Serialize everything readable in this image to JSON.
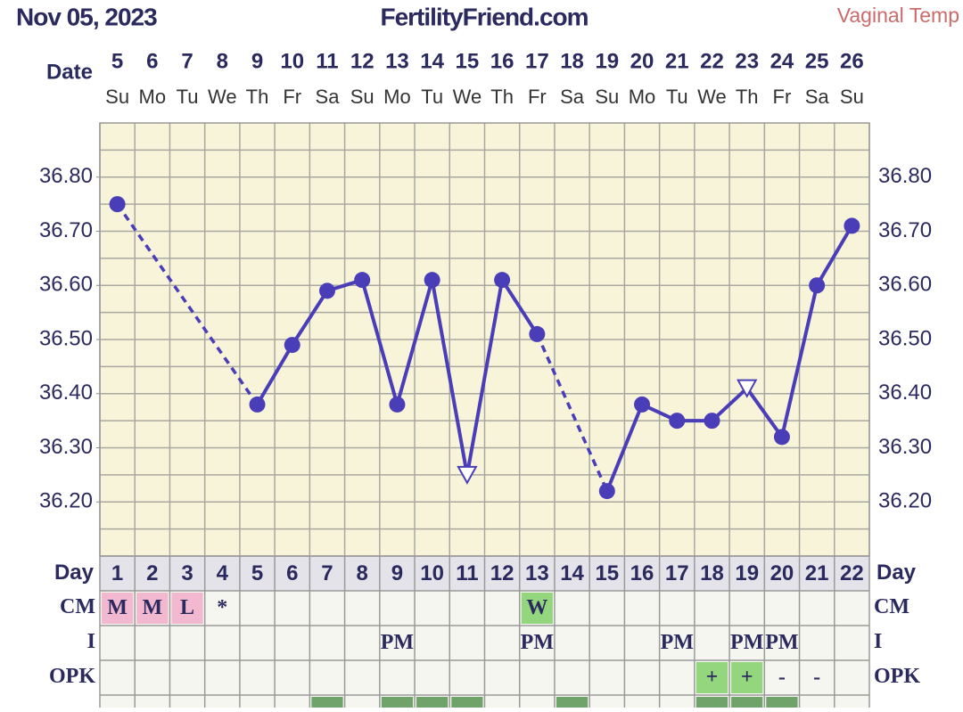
{
  "header": {
    "date": "Nov 05, 2023",
    "site": "FertilityFriend.com",
    "temp_type": "Vaginal Temp"
  },
  "date_row": {
    "label": "Date",
    "dates": [
      5,
      6,
      7,
      8,
      9,
      10,
      11,
      12,
      13,
      14,
      15,
      16,
      17,
      18,
      19,
      20,
      21,
      22,
      23,
      24,
      25,
      26
    ],
    "weekdays": [
      "Su",
      "Mo",
      "Tu",
      "We",
      "Th",
      "Fr",
      "Sa",
      "Su",
      "Mo",
      "Tu",
      "We",
      "Th",
      "Fr",
      "Sa",
      "Su",
      "Mo",
      "Tu",
      "We",
      "Th",
      "Fr",
      "Sa",
      "Su"
    ]
  },
  "chart_data": {
    "type": "line",
    "x": [
      1,
      2,
      3,
      4,
      5,
      6,
      7,
      8,
      9,
      10,
      11,
      12,
      13,
      14,
      15,
      16,
      17,
      18,
      19,
      20,
      21,
      22
    ],
    "values": [
      36.75,
      null,
      null,
      null,
      36.38,
      36.49,
      36.59,
      36.61,
      36.38,
      36.61,
      36.25,
      36.61,
      36.51,
      null,
      36.22,
      36.38,
      36.35,
      36.35,
      36.41,
      36.32,
      36.6,
      36.71
    ],
    "open_triangle_days": [
      11,
      19
    ],
    "color": "#4a3db8",
    "ylim": [
      36.1,
      36.9
    ],
    "yticks": [
      {
        "value": 36.2,
        "label": "36.20"
      },
      {
        "value": 36.3,
        "label": "36.30"
      },
      {
        "value": 36.4,
        "label": "36.40"
      },
      {
        "value": 36.5,
        "label": "36.50"
      },
      {
        "value": 36.6,
        "label": "36.60"
      },
      {
        "value": 36.7,
        "label": "36.70"
      },
      {
        "value": 36.8,
        "label": "36.80"
      }
    ],
    "ygrid": [
      36.15,
      36.2,
      36.25,
      36.3,
      36.35,
      36.4,
      36.45,
      36.5,
      36.55,
      36.6,
      36.65,
      36.7,
      36.75,
      36.8,
      36.85
    ],
    "grid": true
  },
  "table": {
    "day_label": "Day",
    "rows": [
      {
        "label": "CM",
        "cells": [
          "M",
          "M",
          "L",
          "*",
          null,
          null,
          null,
          null,
          null,
          null,
          null,
          null,
          "W",
          null,
          null,
          null,
          null,
          null,
          null,
          null,
          null,
          null
        ],
        "highlight": [
          "#f2b8cf",
          "#f2b8cf",
          "#f2b8cf",
          null,
          null,
          null,
          null,
          null,
          null,
          null,
          null,
          null,
          "#93d67e",
          null,
          null,
          null,
          null,
          null,
          null,
          null,
          null,
          null
        ]
      },
      {
        "label": "I",
        "cells": [
          null,
          null,
          null,
          null,
          null,
          null,
          null,
          null,
          "PM",
          null,
          null,
          null,
          "PM",
          null,
          null,
          null,
          "PM",
          null,
          "PM",
          "PM",
          null,
          null
        ],
        "highlight": [
          null,
          null,
          null,
          null,
          null,
          null,
          null,
          null,
          null,
          null,
          null,
          null,
          null,
          null,
          null,
          null,
          null,
          null,
          null,
          null,
          null,
          null
        ]
      },
      {
        "label": "OPK",
        "cells": [
          null,
          null,
          null,
          null,
          null,
          null,
          null,
          null,
          null,
          null,
          null,
          null,
          null,
          null,
          null,
          null,
          null,
          "+",
          "+",
          "-",
          "-",
          null
        ],
        "highlight": [
          null,
          null,
          null,
          null,
          null,
          null,
          null,
          null,
          null,
          null,
          null,
          null,
          null,
          null,
          null,
          null,
          null,
          "#93d67e",
          "#93d67e",
          null,
          null,
          null
        ]
      }
    ],
    "partial_row_highlight": [
      null,
      null,
      null,
      null,
      null,
      null,
      "#6fa36a",
      null,
      "#6fa36a",
      "#6fa36a",
      "#6fa36a",
      null,
      null,
      "#6fa36a",
      null,
      null,
      null,
      "#6fa36a",
      "#6fa36a",
      "#6fa36a",
      null,
      null
    ]
  }
}
